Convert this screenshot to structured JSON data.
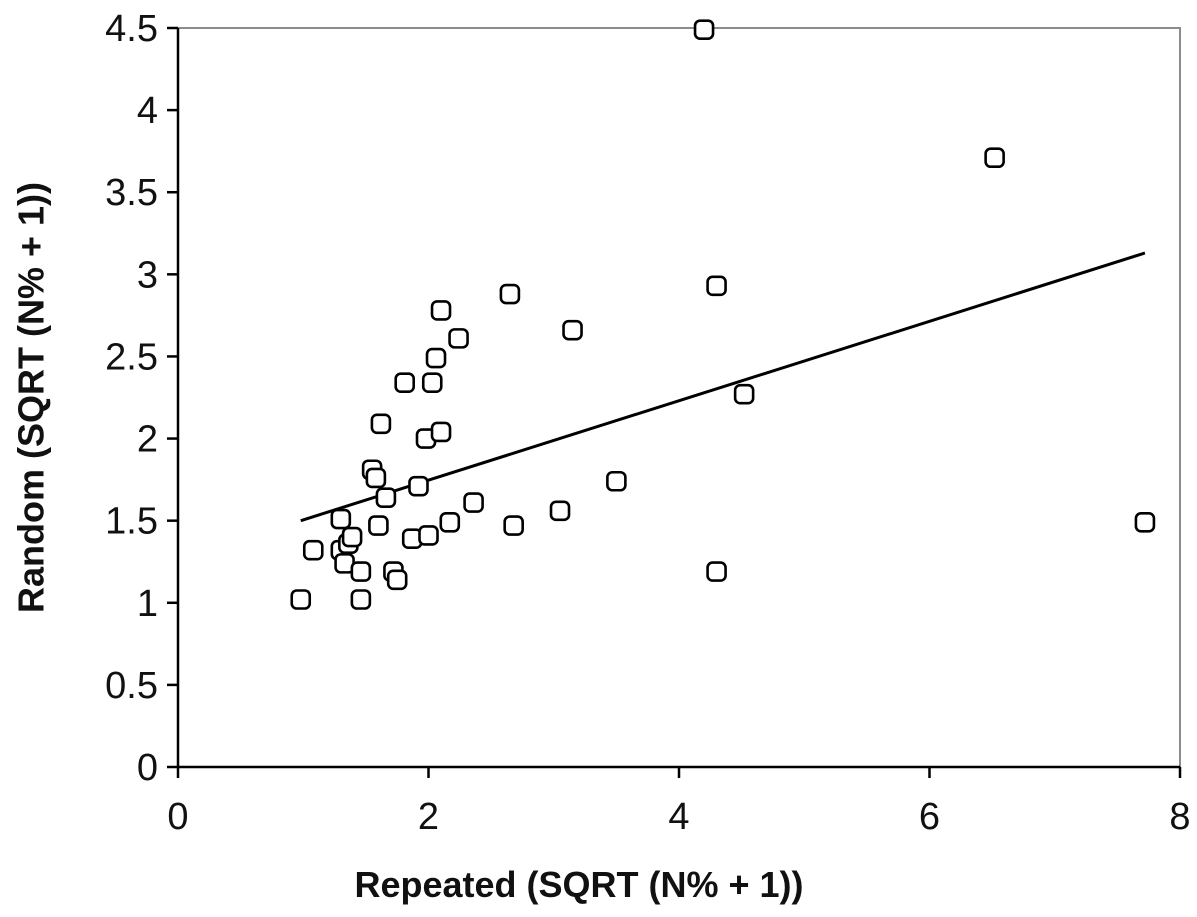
{
  "chart_data": {
    "type": "scatter",
    "title": "",
    "xlabel": "Repeated (SQRT (N% + 1))",
    "ylabel": "Random (SQRT (N% + 1))",
    "xlim": [
      0,
      8
    ],
    "ylim": [
      0,
      4.5
    ],
    "x_ticks": [
      "0",
      "2",
      "4",
      "6",
      "8"
    ],
    "y_ticks": [
      "0",
      "0.5",
      "1",
      "1.5",
      "2",
      "2.5",
      "3",
      "3.5",
      "4",
      "4.5"
    ],
    "grid": false,
    "legend": "none",
    "marker": "open-square",
    "points": [
      {
        "x": 0.98,
        "y": 1.02
      },
      {
        "x": 1.08,
        "y": 1.32
      },
      {
        "x": 1.3,
        "y": 1.51
      },
      {
        "x": 1.3,
        "y": 1.32
      },
      {
        "x": 1.33,
        "y": 1.24
      },
      {
        "x": 1.36,
        "y": 1.36
      },
      {
        "x": 1.39,
        "y": 1.4
      },
      {
        "x": 1.46,
        "y": 1.19
      },
      {
        "x": 1.46,
        "y": 1.02
      },
      {
        "x": 1.55,
        "y": 1.81
      },
      {
        "x": 1.58,
        "y": 1.76
      },
      {
        "x": 1.6,
        "y": 1.47
      },
      {
        "x": 1.62,
        "y": 2.09
      },
      {
        "x": 1.66,
        "y": 1.64
      },
      {
        "x": 1.72,
        "y": 1.19
      },
      {
        "x": 1.75,
        "y": 1.14
      },
      {
        "x": 1.81,
        "y": 2.34
      },
      {
        "x": 1.87,
        "y": 1.39
      },
      {
        "x": 1.92,
        "y": 1.71
      },
      {
        "x": 1.98,
        "y": 2.0
      },
      {
        "x": 2.0,
        "y": 1.41
      },
      {
        "x": 2.03,
        "y": 2.34
      },
      {
        "x": 2.06,
        "y": 2.49
      },
      {
        "x": 2.1,
        "y": 2.04
      },
      {
        "x": 2.1,
        "y": 2.78
      },
      {
        "x": 2.17,
        "y": 1.49
      },
      {
        "x": 2.24,
        "y": 2.61
      },
      {
        "x": 2.36,
        "y": 1.61
      },
      {
        "x": 2.65,
        "y": 2.88
      },
      {
        "x": 2.68,
        "y": 1.47
      },
      {
        "x": 3.05,
        "y": 1.56
      },
      {
        "x": 3.15,
        "y": 2.66
      },
      {
        "x": 3.5,
        "y": 1.74
      },
      {
        "x": 4.2,
        "y": 4.49
      },
      {
        "x": 4.3,
        "y": 2.93
      },
      {
        "x": 4.3,
        "y": 1.19
      },
      {
        "x": 4.52,
        "y": 2.27
      },
      {
        "x": 6.52,
        "y": 3.71
      },
      {
        "x": 7.72,
        "y": 1.49
      }
    ],
    "trendline": {
      "type": "linear",
      "x": [
        0.98,
        7.72
      ],
      "y": [
        1.5,
        3.13
      ]
    }
  }
}
